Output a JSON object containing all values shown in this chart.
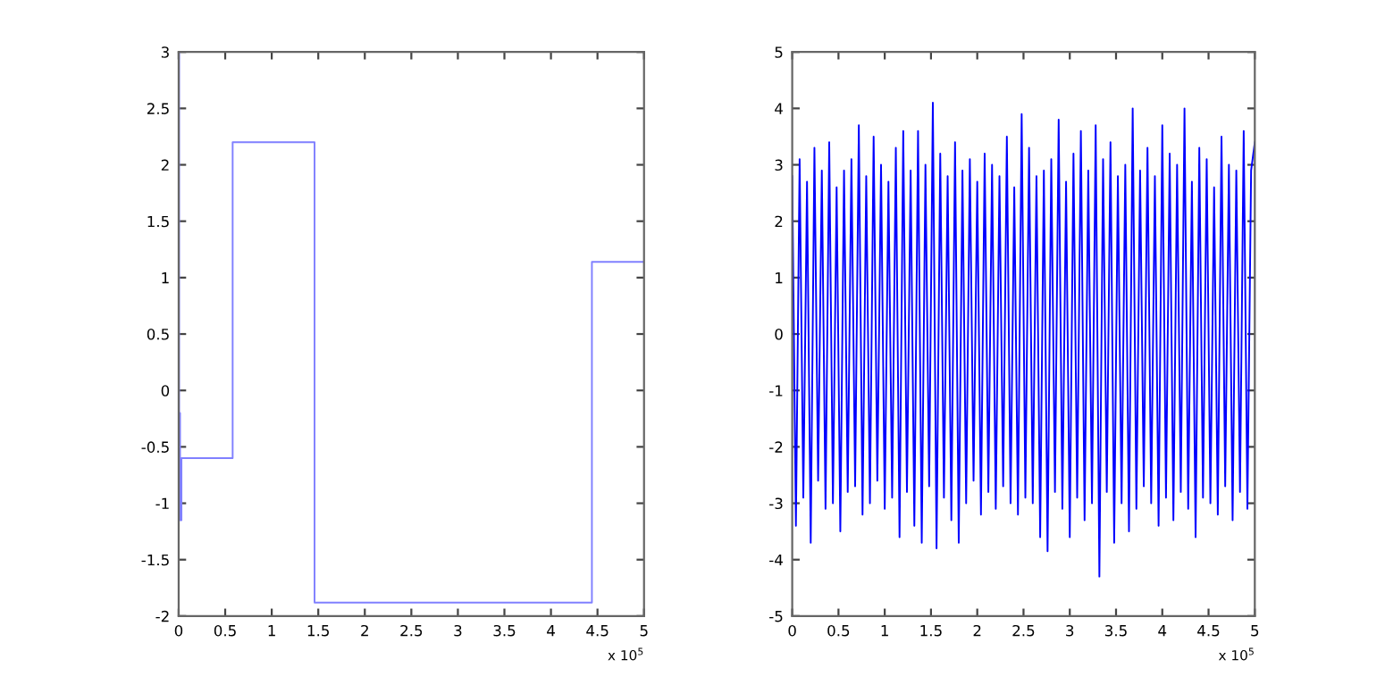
{
  "chart_data": [
    {
      "type": "step",
      "x": [
        0,
        0.005,
        0.015,
        0.03,
        0.58,
        1.46,
        4.44,
        5
      ],
      "values": [
        3.0,
        -0.2,
        -1.15,
        -0.6,
        2.2,
        -1.88,
        1.14,
        1.14
      ],
      "color": "#8080ff",
      "xlim": [
        0,
        5
      ],
      "ylim": [
        -2,
        3
      ],
      "xticks": [
        0,
        0.5,
        1,
        1.5,
        2,
        2.5,
        3,
        3.5,
        4,
        4.5,
        5
      ],
      "yticks": [
        -2,
        -1.5,
        -1,
        -0.5,
        0,
        0.5,
        1,
        1.5,
        2,
        2.5,
        3
      ],
      "annotations": [
        "x 10$^{5}$"
      ],
      "grid": false
    },
    {
      "type": "line",
      "x": [
        0,
        0.04,
        0.08,
        0.12,
        0.16,
        0.2,
        0.24,
        0.28,
        0.32,
        0.36,
        0.4,
        0.44,
        0.48,
        0.52,
        0.56,
        0.6,
        0.64,
        0.68,
        0.72,
        0.76,
        0.8,
        0.84,
        0.88,
        0.92,
        0.96,
        1,
        1.04,
        1.08,
        1.12,
        1.16,
        1.2,
        1.24,
        1.28,
        1.32,
        1.36,
        1.4,
        1.44,
        1.48,
        1.52,
        1.56,
        1.6,
        1.64,
        1.68,
        1.72,
        1.76,
        1.8,
        1.84,
        1.88,
        1.92,
        1.96,
        2,
        2.04,
        2.08,
        2.12,
        2.16,
        2.2,
        2.24,
        2.28,
        2.32,
        2.36,
        2.4,
        2.44,
        2.48,
        2.52,
        2.56,
        2.6,
        2.64,
        2.68,
        2.72,
        2.76,
        2.8,
        2.84,
        2.88,
        2.92,
        2.96,
        3,
        3.04,
        3.08,
        3.12,
        3.16,
        3.2,
        3.24,
        3.28,
        3.32,
        3.36,
        3.4,
        3.44,
        3.48,
        3.52,
        3.56,
        3.6,
        3.64,
        3.68,
        3.72,
        3.76,
        3.8,
        3.84,
        3.88,
        3.92,
        3.96,
        4,
        4.04,
        4.08,
        4.12,
        4.16,
        4.2,
        4.24,
        4.28,
        4.32,
        4.36,
        4.4,
        4.44,
        4.48,
        4.52,
        4.56,
        4.6,
        4.64,
        4.68,
        4.72,
        4.76,
        4.8,
        4.84,
        4.88,
        4.92,
        4.96,
        5
      ],
      "values": [
        2.8,
        -3.4,
        3.1,
        -2.9,
        2.7,
        -3.7,
        3.3,
        -2.6,
        2.9,
        -3.1,
        3.4,
        -3.0,
        2.6,
        -3.5,
        2.9,
        -2.8,
        3.1,
        -2.7,
        3.7,
        -3.2,
        2.8,
        -3.0,
        3.5,
        -2.6,
        3.0,
        -3.1,
        2.7,
        -2.9,
        3.3,
        -3.6,
        3.6,
        -2.8,
        2.9,
        -3.4,
        3.6,
        -3.7,
        3.0,
        -2.7,
        4.1,
        -3.8,
        3.2,
        -2.9,
        2.8,
        -3.3,
        3.4,
        -3.7,
        2.9,
        -3.0,
        3.1,
        -2.6,
        2.7,
        -3.2,
        3.2,
        -2.8,
        3.0,
        -3.1,
        2.8,
        -2.7,
        3.5,
        -3.0,
        2.6,
        -3.2,
        3.9,
        -2.9,
        3.3,
        -3.0,
        2.8,
        -3.6,
        2.9,
        -3.85,
        3.1,
        -2.8,
        3.8,
        -3.1,
        2.7,
        -3.6,
        3.2,
        -2.9,
        3.6,
        -3.3,
        2.9,
        -3.0,
        3.7,
        -4.3,
        3.1,
        -2.8,
        3.4,
        -3.7,
        2.8,
        -3.0,
        3.0,
        -3.5,
        4.0,
        -3.1,
        2.9,
        -2.7,
        3.3,
        -3.0,
        2.8,
        -3.4,
        3.7,
        -2.9,
        3.2,
        -3.3,
        3.0,
        -2.8,
        4.0,
        -3.1,
        2.7,
        -3.6,
        3.3,
        -2.9,
        3.1,
        -3.0,
        2.6,
        -3.2,
        3.5,
        -2.7,
        3.0,
        -3.3,
        2.9,
        -2.8,
        3.6,
        -3.1,
        2.9,
        3.4
      ],
      "color": "#0000ff",
      "xlim": [
        0,
        5
      ],
      "ylim": [
        -5,
        5
      ],
      "xticks": [
        0,
        0.5,
        1,
        1.5,
        2,
        2.5,
        3,
        3.5,
        4,
        4.5,
        5
      ],
      "yticks": [
        -5,
        -4,
        -3,
        -2,
        -1,
        0,
        1,
        2,
        3,
        4,
        5
      ],
      "annotations": [
        "x 10$^{5}$"
      ],
      "grid": false
    }
  ]
}
